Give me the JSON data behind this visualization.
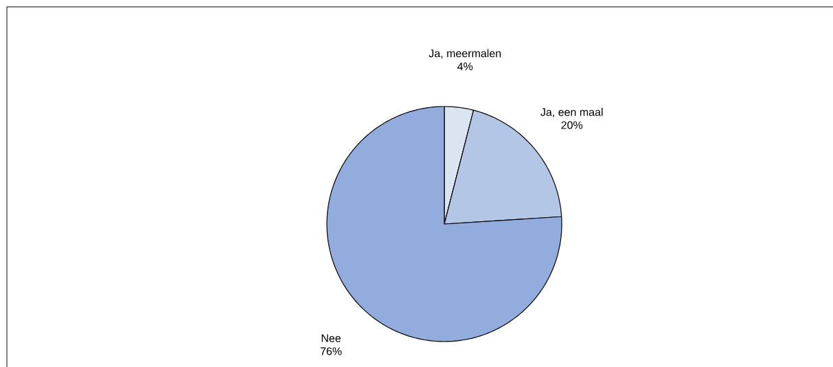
{
  "chart_data": {
    "type": "pie",
    "categories": [
      "Ja, meermalen",
      "Ja, een maal",
      "Nee"
    ],
    "values": [
      4,
      20,
      76
    ],
    "value_labels": [
      "4%",
      "20%",
      "76%"
    ],
    "colors": [
      "#dbe4f1",
      "#b4c6e6",
      "#91acdd"
    ]
  }
}
